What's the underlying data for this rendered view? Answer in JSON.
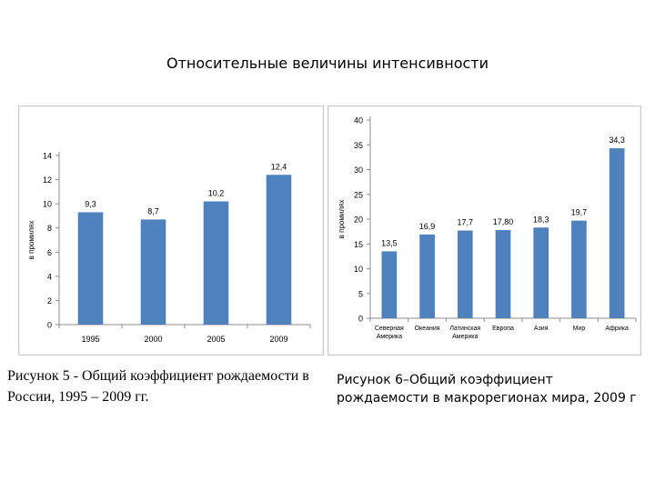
{
  "page": {
    "title": "Относительные величины интенсивности",
    "captions": [
      "Рисунок 5 - Общий коэффициент рождаемости в России, 1995 – 2009 гг.",
      "Рисунок 6–Общий коэффициент рождаемости в макрорегионах мира, 2009 г"
    ]
  },
  "colors": {
    "bar": "#4f81bd",
    "axis": "#8c8c8c",
    "text": "#000000"
  },
  "chart_data": [
    {
      "type": "bar",
      "categories": [
        "1995",
        "2000",
        "2005",
        "2009"
      ],
      "values": [
        9.3,
        8.7,
        10.2,
        12.4
      ],
      "value_labels": [
        "9,3",
        "8,7",
        "10,2",
        "12,4"
      ],
      "yticks": [
        "0",
        "2",
        "4",
        "6",
        "8",
        "10",
        "12",
        "14"
      ],
      "ylabel": "в промилях",
      "ylim": [
        0,
        14
      ],
      "grid": false,
      "legend": "none"
    },
    {
      "type": "bar",
      "categories": [
        "Северная Америка",
        "Океания",
        "Латинская Америка",
        "Европа",
        "Азия",
        "Мир",
        "Африка"
      ],
      "values": [
        13.5,
        16.9,
        17.7,
        17.8,
        18.3,
        19.7,
        34.3
      ],
      "value_labels": [
        "13,5",
        "16,9",
        "17,7",
        "17,80",
        "18,3",
        "19,7",
        "34,3"
      ],
      "yticks": [
        "0",
        "5",
        "10",
        "15",
        "20",
        "25",
        "30",
        "35",
        "40"
      ],
      "ylabel": "в промилях",
      "ylim": [
        0,
        40
      ],
      "grid": false,
      "legend": "none"
    }
  ]
}
